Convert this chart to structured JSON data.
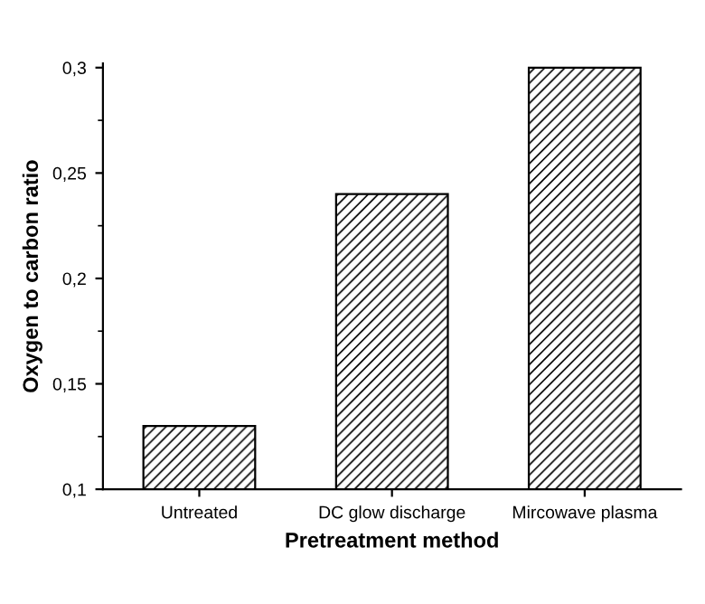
{
  "chart_data": {
    "type": "bar",
    "xlabel": "Pretreatment method",
    "ylabel": "Oxygen to carbon ratio",
    "categories": [
      "Untreated",
      "DC glow discharge",
      "Mircowave plasma"
    ],
    "values": [
      0.13,
      0.24,
      0.3
    ],
    "color": "#000000",
    "ylim": [
      0.1,
      0.302
    ],
    "yticks": [
      {
        "value": 0.1,
        "label": "0,1"
      },
      {
        "value": 0.15,
        "label": "0,15"
      },
      {
        "value": 0.2,
        "label": "0,2"
      },
      {
        "value": 0.25,
        "label": "0,25"
      },
      {
        "value": 0.3,
        "label": "0,3"
      }
    ],
    "grid": false
  }
}
